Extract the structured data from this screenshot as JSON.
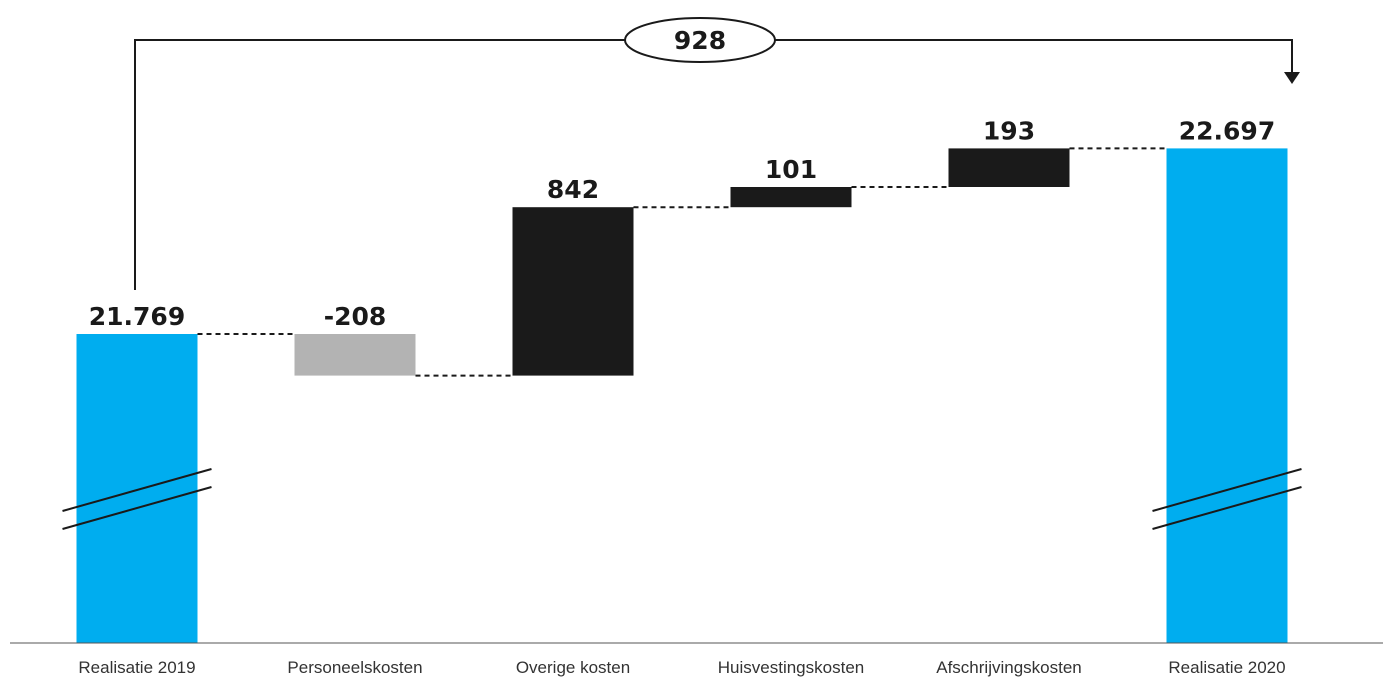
{
  "chart_data": {
    "type": "waterfall",
    "categories": [
      "Realisatie 2019",
      "Personeelskosten",
      "Overige kosten",
      "Huisvestingskosten",
      "Afschrijvingskosten",
      "Realisatie 2020"
    ],
    "steps": [
      {
        "category": "Realisatie 2019",
        "kind": "total",
        "value": 21769,
        "label": "21.769"
      },
      {
        "category": "Personeelskosten",
        "kind": "delta",
        "value": -208,
        "label": "-208"
      },
      {
        "category": "Overige kosten",
        "kind": "delta",
        "value": 842,
        "label": "842"
      },
      {
        "category": "Huisvestingskosten",
        "kind": "delta",
        "value": 101,
        "label": "101"
      },
      {
        "category": "Afschrijvingskosten",
        "kind": "delta",
        "value": 193,
        "label": "193"
      },
      {
        "category": "Realisatie 2020",
        "kind": "total",
        "value": 22697,
        "label": "22.697"
      }
    ],
    "total_change": {
      "value": 928,
      "label": "928"
    },
    "axis_break": true,
    "colors": {
      "total": "#00adef",
      "increase": "#1a1a1a",
      "decrease": "#b3b3b3"
    }
  }
}
